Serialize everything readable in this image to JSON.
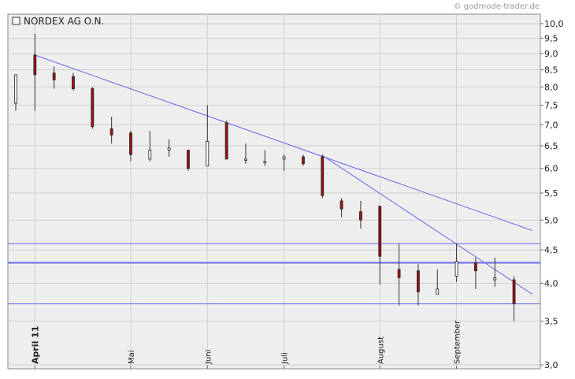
{
  "watermark": "© godmode-trader.de",
  "chart_data": {
    "type": "candlestick",
    "title": "",
    "legend": {
      "label": "NORDEX AG O.N.",
      "position": "top-left"
    },
    "yaxis": {
      "scale": "log",
      "range": [
        3.0,
        10.0
      ],
      "ticks": [
        3.0,
        3.5,
        4.0,
        4.5,
        5.0,
        5.5,
        6.0,
        6.5,
        7.0,
        7.5,
        8.0,
        8.5,
        9.0,
        9.5,
        10.0
      ],
      "tick_labels": [
        "3,0",
        "3,5",
        "4,0",
        "4,5",
        "5,0",
        "5,5",
        "6,0",
        "6,5",
        "7,0",
        "7,5",
        "8,0",
        "8,5",
        "9,0",
        "9,5",
        "10,0"
      ],
      "position": "right"
    },
    "xaxis": {
      "labels": [
        {
          "text": "April 11",
          "index": 1,
          "major": true
        },
        {
          "text": "Mai",
          "index": 6,
          "major": false
        },
        {
          "text": "Juni",
          "index": 10,
          "major": false
        },
        {
          "text": "Juli",
          "index": 14,
          "major": false
        },
        {
          "text": "August",
          "index": 19,
          "major": false
        },
        {
          "text": "September",
          "index": 23,
          "major": false
        }
      ]
    },
    "grid": true,
    "candles": [
      {
        "open": 7.55,
        "close": 8.35,
        "high": 8.35,
        "low": 7.35
      },
      {
        "open": 8.95,
        "close": 8.35,
        "high": 9.65,
        "low": 7.35
      },
      {
        "open": 8.4,
        "close": 8.2,
        "high": 8.6,
        "low": 7.95
      },
      {
        "open": 8.3,
        "close": 7.95,
        "high": 8.4,
        "low": 7.9
      },
      {
        "open": 7.95,
        "close": 6.95,
        "high": 8.0,
        "low": 6.9
      },
      {
        "open": 6.9,
        "close": 6.75,
        "high": 7.2,
        "low": 6.55
      },
      {
        "open": 6.8,
        "close": 6.3,
        "high": 6.85,
        "low": 6.15
      },
      {
        "open": 6.2,
        "close": 6.4,
        "high": 6.85,
        "low": 6.15
      },
      {
        "open": 6.4,
        "close": 6.45,
        "high": 6.65,
        "low": 6.25
      },
      {
        "open": 6.4,
        "close": 6.0,
        "high": 6.4,
        "low": 5.95
      },
      {
        "open": 6.05,
        "close": 6.6,
        "high": 7.5,
        "low": 6.05
      },
      {
        "open": 7.05,
        "close": 6.2,
        "high": 7.1,
        "low": 6.2
      },
      {
        "open": 6.2,
        "close": 6.2,
        "high": 6.55,
        "low": 6.1
      },
      {
        "open": 6.15,
        "close": 6.15,
        "high": 6.4,
        "low": 6.05
      },
      {
        "open": 6.2,
        "close": 6.25,
        "high": 6.3,
        "low": 5.95
      },
      {
        "open": 6.25,
        "close": 6.1,
        "high": 6.3,
        "low": 6.05
      },
      {
        "open": 6.25,
        "close": 5.45,
        "high": 6.3,
        "low": 5.4
      },
      {
        "open": 5.35,
        "close": 5.2,
        "high": 5.4,
        "low": 5.05
      },
      {
        "open": 5.15,
        "close": 5.0,
        "high": 5.35,
        "low": 4.85
      },
      {
        "open": 5.25,
        "close": 4.4,
        "high": 5.25,
        "low": 3.98
      },
      {
        "open": 4.2,
        "close": 4.08,
        "high": 4.6,
        "low": 3.7
      },
      {
        "open": 4.18,
        "close": 3.88,
        "high": 4.28,
        "low": 3.7
      },
      {
        "open": 3.85,
        "close": 3.92,
        "high": 4.2,
        "low": 3.85
      },
      {
        "open": 4.1,
        "close": 4.32,
        "high": 4.6,
        "low": 4.02
      },
      {
        "open": 4.3,
        "close": 4.18,
        "high": 4.38,
        "low": 3.92
      },
      {
        "open": 4.05,
        "close": 4.08,
        "high": 4.38,
        "low": 3.95
      },
      {
        "open": 4.05,
        "close": 3.72,
        "high": 4.1,
        "low": 3.5
      }
    ],
    "horizontal_lines": [
      {
        "value": 4.6,
        "width": 1
      },
      {
        "value": 4.3,
        "width": 2
      },
      {
        "value": 3.72,
        "width": 1
      }
    ],
    "trend_lines": [
      {
        "from": {
          "index": 1,
          "value": 8.95
        },
        "to": {
          "index": 26.95,
          "value": 4.82
        }
      },
      {
        "from": {
          "index": 16,
          "value": 6.28
        },
        "to": {
          "index": 26.95,
          "value": 3.85
        }
      }
    ]
  }
}
